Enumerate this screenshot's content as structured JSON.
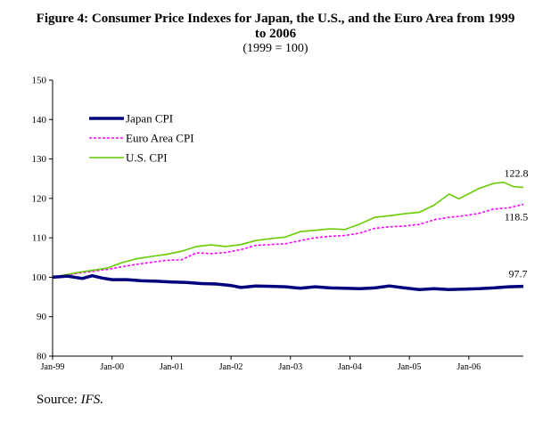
{
  "chart_data": {
    "type": "line",
    "title_lines": [
      "Figure 4: Consumer Price Indexes for Japan, the U.S., and the Euro Area from 1999",
      "to 2006"
    ],
    "subtitle": "(1999 = 100)",
    "source_label": "Source: ",
    "source_name": "IFS.",
    "xlabel": "",
    "ylabel": "",
    "ylim": [
      80,
      150
    ],
    "yticks": [
      80,
      90,
      100,
      110,
      120,
      130,
      140,
      150
    ],
    "xlim": [
      "1999-01",
      "2006-12"
    ],
    "xticks": [
      {
        "label": "Jan-99",
        "date": "1999-01"
      },
      {
        "label": "Jan-00",
        "date": "2000-01"
      },
      {
        "label": "Jan-01",
        "date": "2001-01"
      },
      {
        "label": "Jan-02",
        "date": "2002-01"
      },
      {
        "label": "Jan-03",
        "date": "2003-01"
      },
      {
        "label": "Jan-04",
        "date": "2004-01"
      },
      {
        "label": "Jan-05",
        "date": "2005-01"
      },
      {
        "label": "Jan-06",
        "date": "2006-01"
      }
    ],
    "grid": false,
    "legend_position": "top-left",
    "series": [
      {
        "name": "Japan CPI",
        "color": "#000080",
        "style": "solid-thick",
        "end_label": "97.7",
        "points": [
          [
            "1999-01",
            100.0
          ],
          [
            "1999-04",
            100.3
          ],
          [
            "1999-07",
            99.7
          ],
          [
            "1999-09",
            100.4
          ],
          [
            "1999-11",
            99.8
          ],
          [
            "2000-01",
            99.4
          ],
          [
            "2000-04",
            99.4
          ],
          [
            "2000-07",
            99.1
          ],
          [
            "2000-10",
            99.0
          ],
          [
            "2001-01",
            98.8
          ],
          [
            "2001-04",
            98.7
          ],
          [
            "2001-07",
            98.4
          ],
          [
            "2001-10",
            98.3
          ],
          [
            "2002-01",
            97.9
          ],
          [
            "2002-03",
            97.4
          ],
          [
            "2002-06",
            97.8
          ],
          [
            "2002-09",
            97.7
          ],
          [
            "2002-12",
            97.6
          ],
          [
            "2003-03",
            97.2
          ],
          [
            "2003-06",
            97.6
          ],
          [
            "2003-09",
            97.3
          ],
          [
            "2003-12",
            97.2
          ],
          [
            "2004-03",
            97.1
          ],
          [
            "2004-06",
            97.3
          ],
          [
            "2004-09",
            97.8
          ],
          [
            "2004-12",
            97.3
          ],
          [
            "2005-03",
            96.9
          ],
          [
            "2005-06",
            97.1
          ],
          [
            "2005-09",
            96.9
          ],
          [
            "2005-12",
            97.0
          ],
          [
            "2006-03",
            97.1
          ],
          [
            "2006-06",
            97.3
          ],
          [
            "2006-09",
            97.6
          ],
          [
            "2006-12",
            97.7
          ]
        ]
      },
      {
        "name": "Euro Area CPI",
        "color": "#ff00ff",
        "style": "dotted",
        "end_label": "118.5",
        "points": [
          [
            "1999-01",
            100.0
          ],
          [
            "1999-06",
            101.0
          ],
          [
            "1999-12",
            102.0
          ],
          [
            "2000-06",
            103.3
          ],
          [
            "2000-12",
            104.3
          ],
          [
            "2001-03",
            104.4
          ],
          [
            "2001-06",
            106.2
          ],
          [
            "2001-09",
            106.0
          ],
          [
            "2001-12",
            106.3
          ],
          [
            "2002-03",
            107.0
          ],
          [
            "2002-06",
            108.1
          ],
          [
            "2002-09",
            108.3
          ],
          [
            "2002-12",
            108.5
          ],
          [
            "2003-03",
            109.3
          ],
          [
            "2003-06",
            110.0
          ],
          [
            "2003-09",
            110.4
          ],
          [
            "2003-12",
            110.6
          ],
          [
            "2004-03",
            111.2
          ],
          [
            "2004-06",
            112.4
          ],
          [
            "2004-09",
            112.8
          ],
          [
            "2004-12",
            113.0
          ],
          [
            "2005-03",
            113.4
          ],
          [
            "2005-06",
            114.6
          ],
          [
            "2005-09",
            115.2
          ],
          [
            "2005-12",
            115.6
          ],
          [
            "2006-03",
            116.2
          ],
          [
            "2006-06",
            117.3
          ],
          [
            "2006-09",
            117.6
          ],
          [
            "2006-12",
            118.5
          ]
        ]
      },
      {
        "name": "U.S. CPI",
        "color": "#66cc00",
        "style": "solid",
        "end_label": "122.8",
        "points": [
          [
            "1999-01",
            100.0
          ],
          [
            "1999-06",
            101.2
          ],
          [
            "1999-12",
            102.3
          ],
          [
            "2000-03",
            103.7
          ],
          [
            "2000-06",
            104.7
          ],
          [
            "2000-09",
            105.3
          ],
          [
            "2000-12",
            105.8
          ],
          [
            "2001-03",
            106.6
          ],
          [
            "2001-06",
            107.8
          ],
          [
            "2001-09",
            108.2
          ],
          [
            "2001-12",
            107.8
          ],
          [
            "2002-03",
            108.3
          ],
          [
            "2002-06",
            109.3
          ],
          [
            "2002-09",
            109.8
          ],
          [
            "2002-12",
            110.2
          ],
          [
            "2003-03",
            111.6
          ],
          [
            "2003-06",
            111.9
          ],
          [
            "2003-09",
            112.3
          ],
          [
            "2003-12",
            112.1
          ],
          [
            "2004-03",
            113.5
          ],
          [
            "2004-06",
            115.2
          ],
          [
            "2004-09",
            115.6
          ],
          [
            "2004-12",
            116.1
          ],
          [
            "2005-03",
            116.5
          ],
          [
            "2005-06",
            118.3
          ],
          [
            "2005-09",
            121.1
          ],
          [
            "2005-11",
            119.9
          ],
          [
            "2006-01",
            121.2
          ],
          [
            "2006-03",
            122.5
          ],
          [
            "2006-06",
            123.8
          ],
          [
            "2006-08",
            124.1
          ],
          [
            "2006-10",
            123.0
          ],
          [
            "2006-12",
            122.8
          ]
        ]
      }
    ]
  }
}
